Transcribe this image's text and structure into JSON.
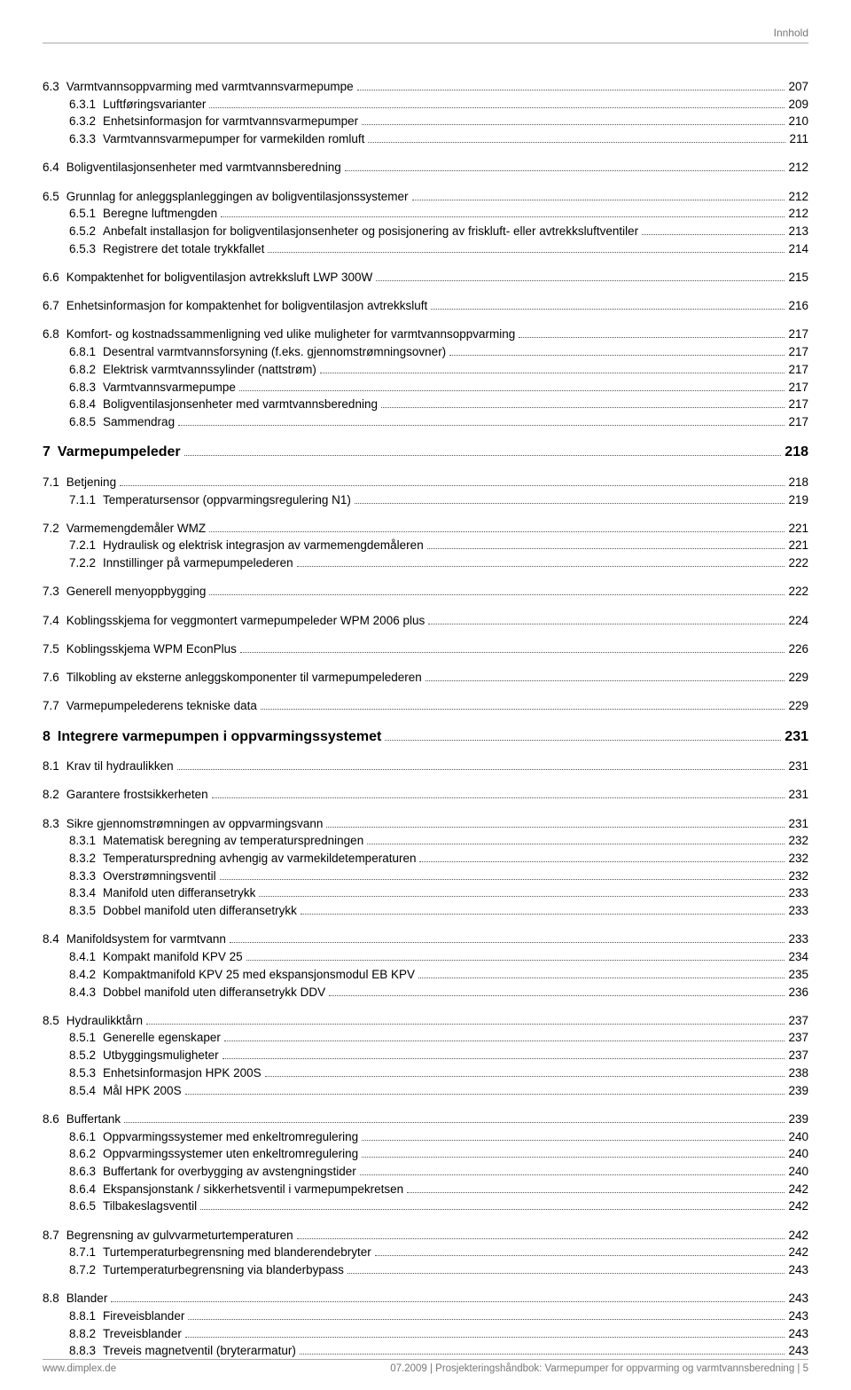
{
  "header": {
    "right_label": "Innhold"
  },
  "footer": {
    "left": "www.dimplex.de",
    "right": "07.2009 | Prosjekteringshåndbok: Varmepumper for oppvarming og varmtvannsberedning | 5"
  },
  "toc": [
    {
      "group": [
        {
          "num": "6.3",
          "title": "Varmtvannsoppvarming med varmtvannsvarmepumpe",
          "page": "207",
          "level": 1
        },
        {
          "num": "6.3.1",
          "title": "Luftføringsvarianter",
          "page": "209",
          "level": 2
        },
        {
          "num": "6.3.2",
          "title": "Enhetsinformasjon for varmtvannsvarmepumper",
          "page": "210",
          "level": 2
        },
        {
          "num": "6.3.3",
          "title": "Varmtvannsvarmepumper for varmekilden romluft",
          "page": "211",
          "level": 2
        }
      ]
    },
    {
      "group": [
        {
          "num": "6.4",
          "title": "Boligventilasjonsenheter med varmtvannsberedning",
          "page": "212",
          "level": 1
        }
      ]
    },
    {
      "group": [
        {
          "num": "6.5",
          "title": "Grunnlag for anleggsplanleggingen av boligventilasjonssystemer",
          "page": "212",
          "level": 1
        },
        {
          "num": "6.5.1",
          "title": "Beregne luftmengden",
          "page": "212",
          "level": 2
        },
        {
          "num": "6.5.2",
          "title": "Anbefalt installasjon for boligventilasjonsenheter og posisjonering av friskluft- eller avtrekksluftventiler",
          "page": "213",
          "level": 2
        },
        {
          "num": "6.5.3",
          "title": "Registrere det totale trykkfallet",
          "page": "214",
          "level": 2
        }
      ]
    },
    {
      "group": [
        {
          "num": "6.6",
          "title": "Kompaktenhet for boligventilasjon avtrekksluft LWP 300W",
          "page": "215",
          "level": 1
        }
      ]
    },
    {
      "group": [
        {
          "num": "6.7",
          "title": "Enhetsinformasjon for kompaktenhet for boligventilasjon avtrekksluft",
          "page": "216",
          "level": 1
        }
      ]
    },
    {
      "group": [
        {
          "num": "6.8",
          "title": "Komfort- og kostnadssammenligning ved ulike muligheter for varmtvannsoppvarming",
          "page": "217",
          "level": 1
        },
        {
          "num": "6.8.1",
          "title": "Desentral varmtvannsforsyning (f.eks. gjennomstrømningsovner)",
          "page": "217",
          "level": 2
        },
        {
          "num": "6.8.2",
          "title": "Elektrisk varmtvannssylinder (nattstrøm)",
          "page": "217",
          "level": 2
        },
        {
          "num": "6.8.3",
          "title": "Varmtvannsvarmepumpe",
          "page": "217",
          "level": 2
        },
        {
          "num": "6.8.4",
          "title": "Boligventilasjonsenheter med varmtvannsberedning",
          "page": "217",
          "level": 2
        },
        {
          "num": "6.8.5",
          "title": "Sammendrag",
          "page": "217",
          "level": 2
        }
      ]
    },
    {
      "group": [
        {
          "num": "7",
          "title": "Varmepumpeleder",
          "page": "218",
          "level": 0
        }
      ]
    },
    {
      "group": [
        {
          "num": "7.1",
          "title": "Betjening",
          "page": "218",
          "level": 1
        },
        {
          "num": "7.1.1",
          "title": "Temperatursensor (oppvarmingsregulering N1)",
          "page": "219",
          "level": 2
        }
      ]
    },
    {
      "group": [
        {
          "num": "7.2",
          "title": "Varmemengdemåler WMZ",
          "page": "221",
          "level": 1
        },
        {
          "num": "7.2.1",
          "title": "Hydraulisk og elektrisk integrasjon av varmemengdemåleren",
          "page": "221",
          "level": 2
        },
        {
          "num": "7.2.2",
          "title": "Innstillinger på varmepumpelederen",
          "page": "222",
          "level": 2
        }
      ]
    },
    {
      "group": [
        {
          "num": "7.3",
          "title": "Generell menyoppbygging",
          "page": "222",
          "level": 1
        }
      ]
    },
    {
      "group": [
        {
          "num": "7.4",
          "title": "Koblingsskjema for veggmontert varmepumpeleder WPM 2006 plus",
          "page": "224",
          "level": 1
        }
      ]
    },
    {
      "group": [
        {
          "num": "7.5",
          "title": "Koblingsskjema WPM EconPlus",
          "page": "226",
          "level": 1
        }
      ]
    },
    {
      "group": [
        {
          "num": "7.6",
          "title": "Tilkobling av eksterne anleggskomponenter til varmepumpelederen",
          "page": "229",
          "level": 1
        }
      ]
    },
    {
      "group": [
        {
          "num": "7.7",
          "title": "Varmepumpelederens tekniske data",
          "page": "229",
          "level": 1
        }
      ]
    },
    {
      "group": [
        {
          "num": "8",
          "title": "Integrere varmepumpen i oppvarmingssystemet",
          "page": "231",
          "level": 0
        }
      ]
    },
    {
      "group": [
        {
          "num": "8.1",
          "title": "Krav til hydraulikken",
          "page": "231",
          "level": 1
        }
      ]
    },
    {
      "group": [
        {
          "num": "8.2",
          "title": "Garantere frostsikkerheten",
          "page": "231",
          "level": 1
        }
      ]
    },
    {
      "group": [
        {
          "num": "8.3",
          "title": "Sikre gjennomstrømningen av oppvarmingsvann",
          "page": "231",
          "level": 1
        },
        {
          "num": "8.3.1",
          "title": "Matematisk beregning av temperaturspredningen",
          "page": "232",
          "level": 2
        },
        {
          "num": "8.3.2",
          "title": "Temperaturspredning avhengig av varmekildetemperaturen",
          "page": "232",
          "level": 2
        },
        {
          "num": "8.3.3",
          "title": "Overstrømningsventil",
          "page": "232",
          "level": 2
        },
        {
          "num": "8.3.4",
          "title": "Manifold uten differansetrykk",
          "page": "233",
          "level": 2
        },
        {
          "num": "8.3.5",
          "title": "Dobbel manifold uten differansetrykk",
          "page": "233",
          "level": 2
        }
      ]
    },
    {
      "group": [
        {
          "num": "8.4",
          "title": "Manifoldsystem for varmtvann",
          "page": "233",
          "level": 1
        },
        {
          "num": "8.4.1",
          "title": "Kompakt manifold KPV 25",
          "page": "234",
          "level": 2
        },
        {
          "num": "8.4.2",
          "title": "Kompaktmanifold KPV 25 med ekspansjonsmodul EB KPV",
          "page": "235",
          "level": 2
        },
        {
          "num": "8.4.3",
          "title": "Dobbel manifold uten differansetrykk DDV",
          "page": "236",
          "level": 2
        }
      ]
    },
    {
      "group": [
        {
          "num": "8.5",
          "title": "Hydraulikktårn",
          "page": "237",
          "level": 1
        },
        {
          "num": "8.5.1",
          "title": "Generelle egenskaper",
          "page": "237",
          "level": 2
        },
        {
          "num": "8.5.2",
          "title": "Utbyggingsmuligheter",
          "page": "237",
          "level": 2
        },
        {
          "num": "8.5.3",
          "title": "Enhetsinformasjon HPK 200S",
          "page": "238",
          "level": 2
        },
        {
          "num": "8.5.4",
          "title": "Mål HPK 200S",
          "page": "239",
          "level": 2
        }
      ]
    },
    {
      "group": [
        {
          "num": "8.6",
          "title": "Buffertank",
          "page": "239",
          "level": 1
        },
        {
          "num": "8.6.1",
          "title": "Oppvarmingssystemer med enkeltromregulering",
          "page": "240",
          "level": 2
        },
        {
          "num": "8.6.2",
          "title": "Oppvarmingssystemer uten enkeltromregulering",
          "page": "240",
          "level": 2
        },
        {
          "num": "8.6.3",
          "title": "Buffertank for overbygging av avstengningstider",
          "page": "240",
          "level": 2
        },
        {
          "num": "8.6.4",
          "title": "Ekspansjonstank / sikkerhetsventil i varmepumpekretsen",
          "page": "242",
          "level": 2
        },
        {
          "num": "8.6.5",
          "title": "Tilbakeslagsventil",
          "page": "242",
          "level": 2
        }
      ]
    },
    {
      "group": [
        {
          "num": "8.7",
          "title": "Begrensning av gulvvarmeturtemperaturen",
          "page": "242",
          "level": 1
        },
        {
          "num": "8.7.1",
          "title": "Turtemperaturbegrensning med blanderendebryter",
          "page": "242",
          "level": 2
        },
        {
          "num": "8.7.2",
          "title": "Turtemperaturbegrensning via blanderbypass",
          "page": "243",
          "level": 2
        }
      ]
    },
    {
      "group": [
        {
          "num": "8.8",
          "title": "Blander",
          "page": "243",
          "level": 1
        },
        {
          "num": "8.8.1",
          "title": "Fireveisblander",
          "page": "243",
          "level": 2
        },
        {
          "num": "8.8.2",
          "title": "Treveisblander",
          "page": "243",
          "level": 2
        },
        {
          "num": "8.8.3",
          "title": "Treveis magnetventil (bryterarmatur)",
          "page": "243",
          "level": 2
        }
      ]
    }
  ]
}
